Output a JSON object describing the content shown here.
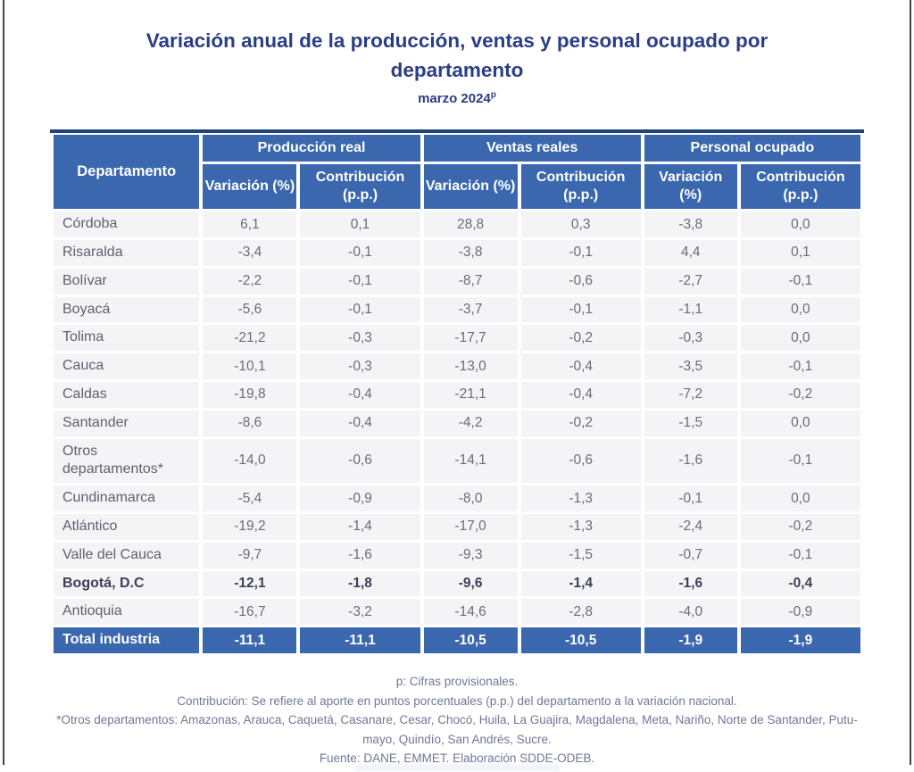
{
  "colors": {
    "header_blue": "#3a67ae",
    "top_rule_navy": "#20417a",
    "title_navy": "#2b3d86",
    "row_bg": "#f4f4f6",
    "body_text": "#6b6b7c",
    "footer_text": "#6f7896"
  },
  "title": {
    "text": "Variación anual de la producción, ventas y personal ocupado por departamento",
    "subtitle": "marzo 2024",
    "subtitle_superscript": "p"
  },
  "table": {
    "department_header": "Departamento",
    "groups": [
      {
        "label": "Producción real"
      },
      {
        "label": "Ventas reales"
      },
      {
        "label": "Personal ocupado"
      }
    ],
    "subheaders": [
      "Variación (%)",
      "Contribución (p.p.)"
    ],
    "rows": [
      {
        "name": "Córdoba",
        "values": [
          "6,1",
          "0,1",
          "28,8",
          "0,3",
          "-3,8",
          "0,0"
        ],
        "style": "normal"
      },
      {
        "name": "Risaralda",
        "values": [
          "-3,4",
          "-0,1",
          "-3,8",
          "-0,1",
          "4,4",
          "0,1"
        ],
        "style": "normal"
      },
      {
        "name": "Bolívar",
        "values": [
          "-2,2",
          "-0,1",
          "-8,7",
          "-0,6",
          "-2,7",
          "-0,1"
        ],
        "style": "normal"
      },
      {
        "name": "Boyacá",
        "values": [
          "-5,6",
          "-0,1",
          "-3,7",
          "-0,1",
          "-1,1",
          "0,0"
        ],
        "style": "normal"
      },
      {
        "name": "Tolima",
        "values": [
          "-21,2",
          "-0,3",
          "-17,7",
          "-0,2",
          "-0,3",
          "0,0"
        ],
        "style": "normal"
      },
      {
        "name": "Cauca",
        "values": [
          "-10,1",
          "-0,3",
          "-13,0",
          "-0,4",
          "-3,5",
          "-0,1"
        ],
        "style": "normal"
      },
      {
        "name": "Caldas",
        "values": [
          "-19,8",
          "-0,4",
          "-21,1",
          "-0,4",
          "-7,2",
          "-0,2"
        ],
        "style": "normal"
      },
      {
        "name": "Santander",
        "values": [
          "-8,6",
          "-0,4",
          "-4,2",
          "-0,2",
          "-1,5",
          "0,0"
        ],
        "style": "normal"
      },
      {
        "name": "Otros departamentos*",
        "values": [
          "-14,0",
          "-0,6",
          "-14,1",
          "-0,6",
          "-1,6",
          "-0,1"
        ],
        "style": "normal"
      },
      {
        "name": "Cundinamarca",
        "values": [
          "-5,4",
          "-0,9",
          "-8,0",
          "-1,3",
          "-0,1",
          "0,0"
        ],
        "style": "normal"
      },
      {
        "name": "Atlántico",
        "values": [
          "-19,2",
          "-1,4",
          "-17,0",
          "-1,3",
          "-2,4",
          "-0,2"
        ],
        "style": "normal"
      },
      {
        "name": "Valle del Cauca",
        "values": [
          "-9,7",
          "-1,6",
          "-9,3",
          "-1,5",
          "-0,7",
          "-0,1"
        ],
        "style": "normal"
      },
      {
        "name": "Bogotá, D.C",
        "values": [
          "-12,1",
          "-1,8",
          "-9,6",
          "-1,4",
          "-1,6",
          "-0,4"
        ],
        "style": "bold"
      },
      {
        "name": "Antioquia",
        "values": [
          "-16,7",
          "-3,2",
          "-14,6",
          "-2,8",
          "-4,0",
          "-0,9"
        ],
        "style": "normal"
      },
      {
        "name": "Total industria",
        "values": [
          "-11,1",
          "-11,1",
          "-10,5",
          "-10,5",
          "-1,9",
          "-1,9"
        ],
        "style": "total"
      }
    ]
  },
  "footnotes": {
    "lines": [
      "p: Cifras provisionales.",
      "Contribución: Se refiere al aporte en puntos porcentuales (p.p.) del departamento a la variación nacional.",
      "*Otros departamentos: Amazonas, Arauca, Caquetá, Casanare, Cesar, Chocó, Huila, La Guajira, Magdalena, Meta, Nariño, Norte de Santander, Putu-",
      "mayo, Quindío, San Andrés, Sucre.",
      "Fuente: DANE, EMMET. Elaboración SDDE-ODEB."
    ]
  },
  "chart_data": {
    "type": "table",
    "title": "Variación anual de la producción, ventas y personal ocupado por departamento",
    "subtitle": "marzo 2024p",
    "columns": [
      "Departamento",
      "Producción real - Variación (%)",
      "Producción real - Contribución (p.p.)",
      "Ventas reales - Variación (%)",
      "Ventas reales - Contribución (p.p.)",
      "Personal ocupado - Variación (%)",
      "Personal ocupado - Contribución (p.p.)"
    ],
    "rows": [
      [
        "Córdoba",
        6.1,
        0.1,
        28.8,
        0.3,
        -3.8,
        0.0
      ],
      [
        "Risaralda",
        -3.4,
        -0.1,
        -3.8,
        -0.1,
        4.4,
        0.1
      ],
      [
        "Bolívar",
        -2.2,
        -0.1,
        -8.7,
        -0.6,
        -2.7,
        -0.1
      ],
      [
        "Boyacá",
        -5.6,
        -0.1,
        -3.7,
        -0.1,
        -1.1,
        0.0
      ],
      [
        "Tolima",
        -21.2,
        -0.3,
        -17.7,
        -0.2,
        -0.3,
        0.0
      ],
      [
        "Cauca",
        -10.1,
        -0.3,
        -13.0,
        -0.4,
        -3.5,
        -0.1
      ],
      [
        "Caldas",
        -19.8,
        -0.4,
        -21.1,
        -0.4,
        -7.2,
        -0.2
      ],
      [
        "Santander",
        -8.6,
        -0.4,
        -4.2,
        -0.2,
        -1.5,
        0.0
      ],
      [
        "Otros departamentos*",
        -14.0,
        -0.6,
        -14.1,
        -0.6,
        -1.6,
        -0.1
      ],
      [
        "Cundinamarca",
        -5.4,
        -0.9,
        -8.0,
        -1.3,
        -0.1,
        0.0
      ],
      [
        "Atlántico",
        -19.2,
        -1.4,
        -17.0,
        -1.3,
        -2.4,
        -0.2
      ],
      [
        "Valle del Cauca",
        -9.7,
        -1.6,
        -9.3,
        -1.5,
        -0.7,
        -0.1
      ],
      [
        "Bogotá, D.C",
        -12.1,
        -1.8,
        -9.6,
        -1.4,
        -1.6,
        -0.4
      ],
      [
        "Antioquia",
        -16.7,
        -3.2,
        -14.6,
        -2.8,
        -4.0,
        -0.9
      ],
      [
        "Total industria",
        -11.1,
        -11.1,
        -10.5,
        -10.5,
        -1.9,
        -1.9
      ]
    ]
  }
}
